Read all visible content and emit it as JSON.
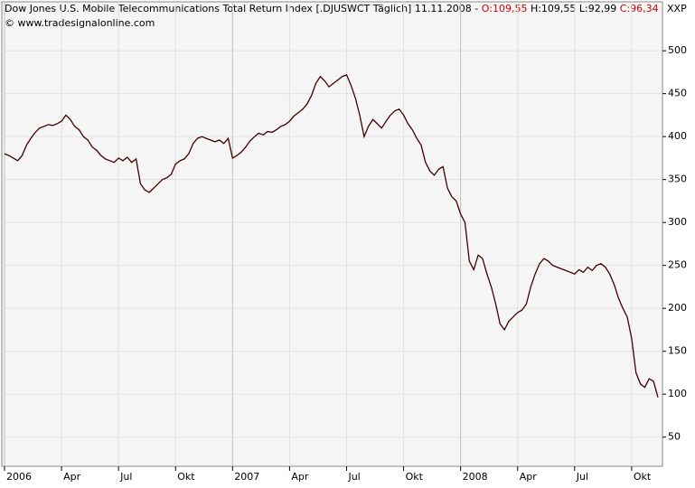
{
  "header": {
    "title": "Dow Jones U.S. Mobile Telecommunications Total Return Index [.DJUSWCT  Täglich] 11.11.2008 -",
    "open": "O:109,55",
    "high_low": "H:109,55 L:92,99",
    "close": "C:96,34",
    "copyright": "© www.tradesignalonline.com",
    "symbol": "XXP"
  },
  "chart_data": {
    "type": "line",
    "color": "#400000",
    "grid": true,
    "categories": [
      "2006",
      null,
      null,
      null,
      null,
      null,
      null,
      null,
      null,
      null,
      null,
      null,
      null,
      "Apr",
      null,
      null,
      null,
      null,
      null,
      null,
      null,
      null,
      null,
      null,
      null,
      null,
      "Jul",
      null,
      null,
      null,
      null,
      null,
      null,
      null,
      null,
      null,
      null,
      null,
      null,
      "Okt",
      null,
      null,
      null,
      null,
      null,
      null,
      null,
      null,
      null,
      null,
      null,
      null,
      "2007",
      null,
      null,
      null,
      null,
      null,
      null,
      null,
      null,
      null,
      null,
      null,
      null,
      "Apr",
      null,
      null,
      null,
      null,
      null,
      null,
      null,
      null,
      null,
      null,
      null,
      null,
      "Jul",
      null,
      null,
      null,
      null,
      null,
      null,
      null,
      null,
      null,
      null,
      null,
      null,
      "Okt",
      null,
      null,
      null,
      null,
      null,
      null,
      null,
      null,
      null,
      null,
      null,
      null,
      "2008",
      null,
      null,
      null,
      null,
      null,
      null,
      null,
      null,
      null,
      null,
      null,
      null,
      "Apr",
      null,
      null,
      null,
      null,
      null,
      null,
      null,
      null,
      null,
      null,
      null,
      null,
      "Jul",
      null,
      null,
      null,
      null,
      null,
      null,
      null,
      null,
      null,
      null,
      null,
      null,
      "Okt",
      null,
      null,
      null,
      null,
      null,
      null
    ],
    "values": [
      380,
      378,
      375,
      372,
      378,
      390,
      398,
      405,
      410,
      412,
      414,
      413,
      415,
      418,
      425,
      420,
      412,
      408,
      400,
      396,
      388,
      384,
      378,
      374,
      372,
      370,
      375,
      372,
      376,
      370,
      374,
      345,
      338,
      335,
      340,
      345,
      350,
      352,
      356,
      368,
      372,
      374,
      380,
      392,
      398,
      400,
      398,
      396,
      394,
      396,
      392,
      398,
      375,
      378,
      382,
      388,
      395,
      400,
      404,
      402,
      406,
      405,
      408,
      412,
      414,
      418,
      424,
      428,
      432,
      438,
      448,
      462,
      470,
      465,
      458,
      462,
      466,
      470,
      472,
      460,
      445,
      425,
      400,
      412,
      420,
      415,
      410,
      418,
      425,
      430,
      432,
      425,
      415,
      408,
      398,
      390,
      370,
      360,
      355,
      362,
      365,
      340,
      330,
      325,
      310,
      300,
      255,
      245,
      262,
      258,
      240,
      225,
      205,
      182,
      175,
      185,
      190,
      195,
      198,
      205,
      225,
      240,
      252,
      258,
      255,
      250,
      248,
      246,
      244,
      242,
      240,
      245,
      242,
      248,
      244,
      250,
      252,
      248,
      240,
      228,
      212,
      200,
      190,
      165,
      125,
      112,
      108,
      118,
      115,
      96.34
    ],
    "ylim": [
      16,
      557
    ],
    "yticks": [
      50,
      100,
      150,
      200,
      250,
      300,
      350,
      400,
      450,
      500
    ]
  }
}
